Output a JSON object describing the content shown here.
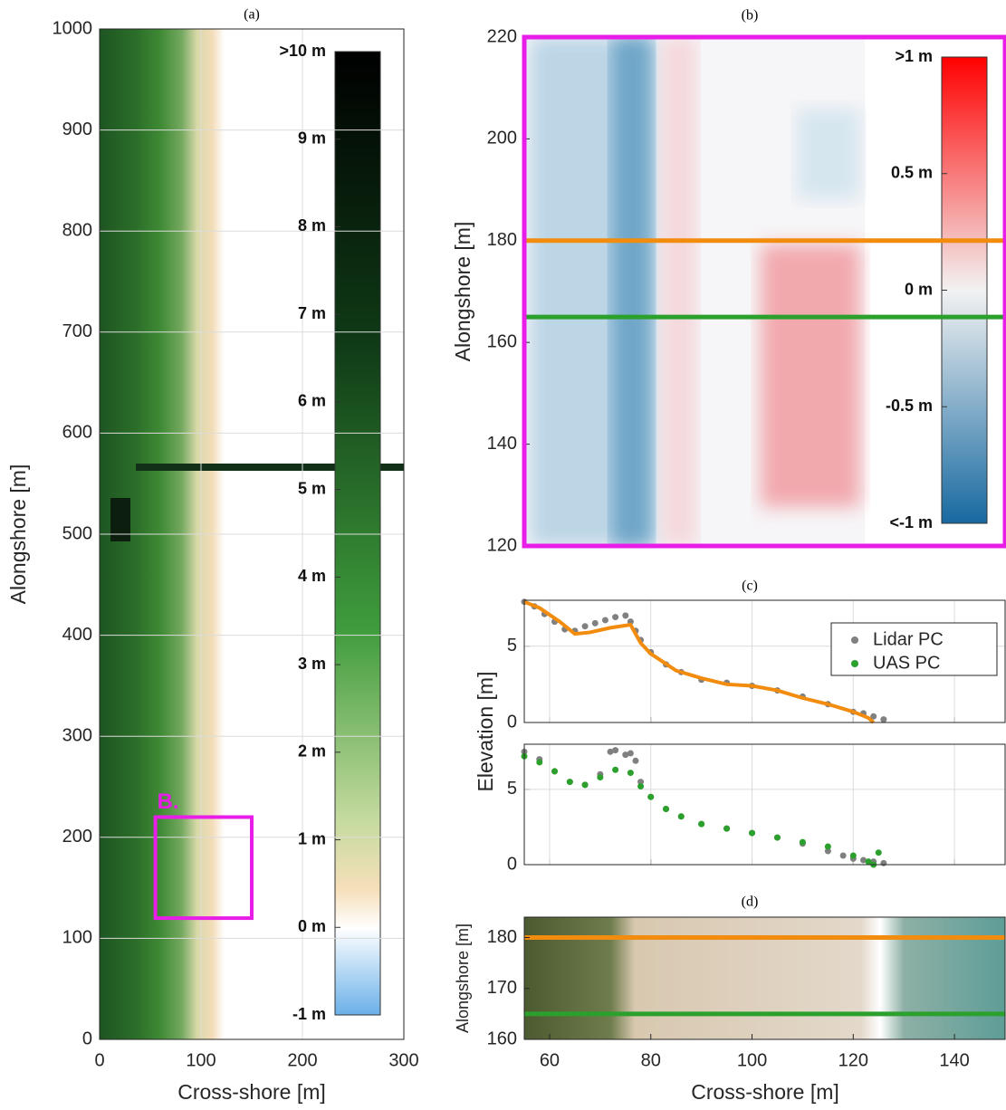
{
  "chart_data": [
    {
      "type": "heatmap",
      "title": "(a)",
      "x_label": "Cross-shore [m]",
      "y_label": "Alongshore [m]",
      "xlim": [
        0,
        300
      ],
      "xticks": [
        0,
        100,
        200,
        300
      ],
      "ylim": [
        0,
        1000
      ],
      "yticks": [
        0,
        100,
        200,
        300,
        400,
        500,
        600,
        700,
        800,
        900,
        1000
      ],
      "grid": true,
      "annotation": "B.",
      "annotation_color": "#e81ee8",
      "colorbar": {
        "lim": [
          -1,
          10
        ],
        "ticks": [
          {
            "value": 10,
            "label": ">10 m"
          },
          {
            "value": 9,
            "label": "9 m"
          },
          {
            "value": 8,
            "label": "8 m"
          },
          {
            "value": 7,
            "label": "7 m"
          },
          {
            "value": 6,
            "label": "6 m"
          },
          {
            "value": 5,
            "label": "5 m"
          },
          {
            "value": 4,
            "label": "4 m"
          },
          {
            "value": 3,
            "label": "3 m"
          },
          {
            "value": 2,
            "label": "2 m"
          },
          {
            "value": 1,
            "label": "1 m"
          },
          {
            "value": 0,
            "label": "0 m"
          },
          {
            "value": -1,
            "label": "-1 m"
          }
        ]
      }
    },
    {
      "type": "heatmap",
      "title": "(b)",
      "y_label": "Alongshore [m]",
      "xlim": [
        55,
        150
      ],
      "ylim": [
        120,
        220
      ],
      "yticks": [
        120,
        140,
        160,
        180,
        200,
        220
      ],
      "frame_color": "#e81ee8",
      "lines": [
        {
          "y": 180,
          "color": "#f28c0f"
        },
        {
          "y": 165,
          "color": "#2ca02c"
        }
      ],
      "colorbar": {
        "lim": [
          -1,
          1
        ],
        "ticks": [
          {
            "value": 1,
            "label": ">1 m"
          },
          {
            "value": 0.5,
            "label": "0.5 m"
          },
          {
            "value": 0,
            "label": "0 m"
          },
          {
            "value": -0.5,
            "label": "-0.5 m"
          },
          {
            "value": -1,
            "label": "<-1 m"
          }
        ]
      }
    },
    {
      "type": "scatter",
      "title": "(c)",
      "y_label": "Elevation [m]",
      "xlim": [
        55,
        150
      ],
      "xticks": [
        60,
        80,
        100,
        120,
        140
      ],
      "ylim": [
        0,
        8
      ],
      "yticks": [
        0,
        5
      ],
      "grid": true,
      "legend": "upper right",
      "panels": [
        {
          "series": [
            {
              "color": "#808080",
              "marker": "points",
              "x": [
                55,
                57,
                59,
                61,
                63,
                65,
                67,
                69,
                71,
                73,
                75,
                76,
                77,
                78,
                80,
                83,
                86,
                90,
                95,
                100,
                105,
                110,
                115,
                120,
                122,
                124,
                126
              ],
              "values": [
                7.9,
                7.6,
                7.1,
                6.6,
                6.1,
                6.0,
                6.3,
                6.5,
                6.7,
                6.9,
                7.0,
                6.6,
                6.0,
                5.4,
                4.6,
                3.8,
                3.3,
                2.8,
                2.6,
                2.4,
                2.1,
                1.7,
                1.2,
                0.7,
                0.6,
                0.4,
                0.2
              ]
            },
            {
              "color": "#f28c0f",
              "marker": "line",
              "x": [
                55,
                58,
                62,
                65,
                68,
                72,
                76,
                78,
                80,
                85,
                90,
                95,
                100,
                105,
                110,
                115,
                120,
                123,
                124
              ],
              "values": [
                7.9,
                7.5,
                6.6,
                5.8,
                5.9,
                6.2,
                6.4,
                5.2,
                4.5,
                3.4,
                2.9,
                2.5,
                2.4,
                2.1,
                1.6,
                1.2,
                0.7,
                0.3,
                0.0
              ]
            }
          ]
        },
        {
          "series": [
            {
              "name": "Lidar PC",
              "color": "#808080",
              "marker": "points",
              "x": [
                55,
                58,
                61,
                64,
                67,
                70,
                72,
                73,
                75,
                76,
                77,
                78,
                80,
                83,
                86,
                90,
                95,
                100,
                105,
                110,
                115,
                118,
                120,
                122,
                124,
                126
              ],
              "values": [
                7.5,
                7.0,
                6.2,
                5.5,
                5.3,
                6.0,
                7.5,
                7.6,
                7.3,
                7.4,
                6.9,
                5.5,
                4.5,
                3.7,
                3.2,
                2.7,
                2.4,
                2.1,
                1.8,
                1.4,
                0.9,
                0.6,
                0.4,
                0.3,
                0.2,
                0.1
              ]
            },
            {
              "name": "UAS PC",
              "color": "#2ca02c",
              "marker": "points",
              "x": [
                55,
                58,
                61,
                64,
                67,
                70,
                73,
                76,
                78,
                80,
                83,
                86,
                90,
                95,
                100,
                105,
                110,
                115,
                120,
                123,
                124,
                125
              ],
              "values": [
                7.2,
                6.8,
                6.2,
                5.5,
                5.3,
                5.8,
                6.3,
                6.1,
                5.2,
                4.5,
                3.7,
                3.2,
                2.7,
                2.4,
                2.1,
                1.8,
                1.5,
                1.2,
                0.6,
                0.2,
                0.0,
                0.8
              ]
            }
          ]
        }
      ]
    },
    {
      "type": "image",
      "title": "(d)",
      "x_label": "Cross-shore [m]",
      "y_label": "Alongshore [m]",
      "xlim": [
        55,
        150
      ],
      "xticks": [
        60,
        80,
        100,
        120,
        140
      ],
      "ylim": [
        160,
        184
      ],
      "yticks": [
        160,
        170,
        180
      ]
    }
  ]
}
